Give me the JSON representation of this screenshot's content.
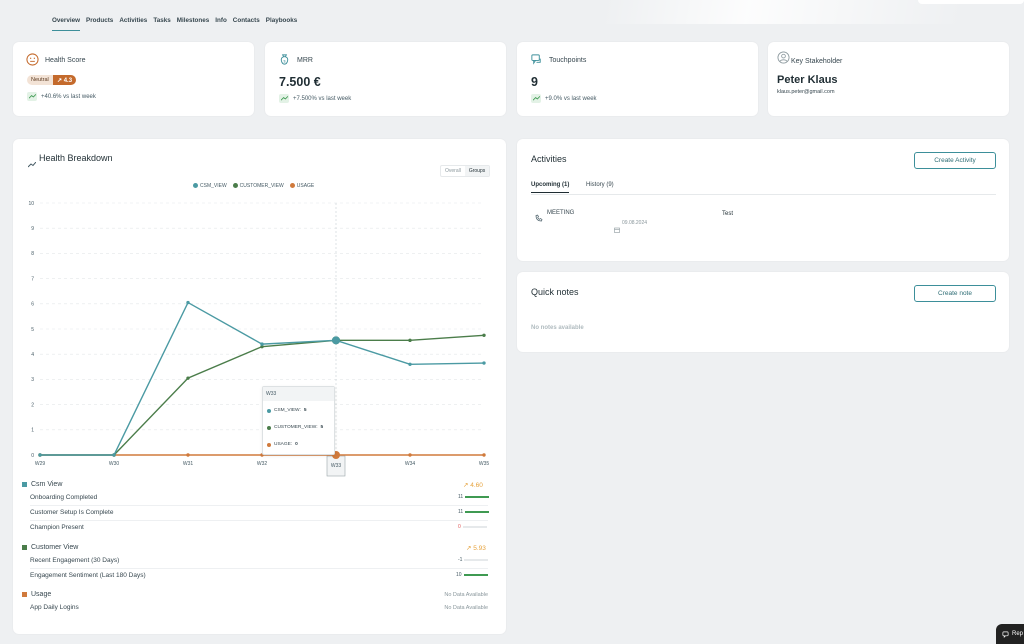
{
  "tabs": [
    "Overview",
    "Products",
    "Activities",
    "Tasks",
    "Milestones",
    "Info",
    "Contacts",
    "Playbooks"
  ],
  "kpis": {
    "health": {
      "title": "Health Score",
      "badge": "Neutral",
      "score": "4.3",
      "trend": "+40.6% vs last week"
    },
    "mrr": {
      "title": "MRR",
      "value": "7.500 €",
      "trend": "+7.500% vs last week"
    },
    "touch": {
      "title": "Touchpoints",
      "value": "9",
      "trend": "+9.0% vs last week"
    },
    "stake": {
      "title": "Key Stakeholder",
      "name": "Peter Klaus",
      "email": "klaus.peter@gmail.com"
    }
  },
  "breakdown": {
    "title": "Health Breakdown",
    "toggle": [
      "Overall",
      "Groups"
    ],
    "groups": [
      {
        "name": "Csm View",
        "score": "4.60",
        "items": [
          {
            "label": "Onboarding Completed",
            "value": "11"
          },
          {
            "label": "Customer Setup Is Complete",
            "value": "11"
          },
          {
            "label": "Champion Present",
            "value": "0"
          }
        ]
      },
      {
        "name": "Customer View",
        "score": "5.93",
        "items": [
          {
            "label": "Recent Engagement (30 Days)",
            "value": "-1"
          },
          {
            "label": "Engagement Sentiment (Last 180 Days)",
            "value": "10"
          }
        ]
      },
      {
        "name": "Usage",
        "score": "No Data Available",
        "items": [
          {
            "label": "App Daily Logins",
            "value": "No Data Available"
          }
        ]
      }
    ],
    "tooltip": {
      "week": "W33",
      "rows": [
        {
          "label": "CSM_VIEW:",
          "value": "5"
        },
        {
          "label": "CUSTOMER_VIEW:",
          "value": "5"
        },
        {
          "label": "USAGE:",
          "value": "0"
        }
      ]
    },
    "xhighlight": "W33"
  },
  "chart_data": {
    "type": "line",
    "x": [
      "W29",
      "W30",
      "W31",
      "W32",
      "W33",
      "W34",
      "W35"
    ],
    "yticks": [
      0,
      1,
      2,
      3,
      4,
      5,
      6,
      7,
      8,
      9,
      10
    ],
    "ylim": [
      0,
      10
    ],
    "legend_position": "top",
    "grid": true,
    "series": [
      {
        "name": "CSM_VIEW",
        "color": "#4b9aa3",
        "values": [
          0,
          0,
          6.05,
          4.4,
          4.55,
          3.6,
          3.65
        ]
      },
      {
        "name": "CUSTOMER_VIEW",
        "color": "#4b7d4a",
        "values": [
          0,
          0,
          3.05,
          4.3,
          4.55,
          4.55,
          4.75
        ]
      },
      {
        "name": "USAGE",
        "color": "#d07a3c",
        "values": [
          0,
          0,
          0,
          0,
          0,
          0,
          0
        ]
      }
    ]
  },
  "activities": {
    "title": "Activities",
    "create": "Create Activity",
    "tabs": [
      "Upcoming (1)",
      "History (9)"
    ],
    "item": {
      "type": "MEETING",
      "date": "09.08.2024",
      "title": "Test"
    }
  },
  "notes": {
    "title": "Quick notes",
    "create": "Create note",
    "empty": "No notes available"
  },
  "chip": "Rep"
}
